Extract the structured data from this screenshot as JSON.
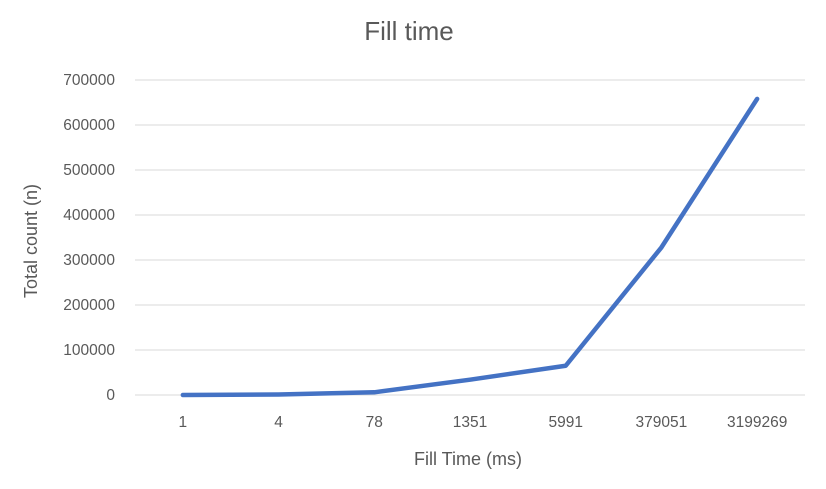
{
  "chart_data": {
    "type": "line",
    "title": "Fill time",
    "xlabel": "Fill Time (ms)",
    "ylabel": "Total count (n)",
    "categories": [
      "1",
      "4",
      "78",
      "1351",
      "5991",
      "379051",
      "3199269"
    ],
    "series": [
      {
        "values": [
          0,
          1000,
          6000,
          34000,
          65000,
          328000,
          658000
        ],
        "color": "#4472C4"
      }
    ],
    "ylim": [
      0,
      700000
    ],
    "yticks": [
      0,
      100000,
      200000,
      300000,
      400000,
      500000,
      600000,
      700000
    ],
    "grid": true,
    "legend": "none"
  }
}
